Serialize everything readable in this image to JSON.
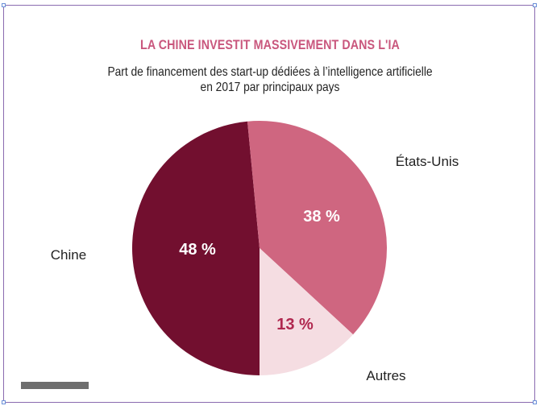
{
  "title": "LA CHINE INVESTIT MASSIVEMENT DANS L'IA",
  "subtitle_line1": "Part de financement des start-up dédiées à l’intelligence artificielle",
  "subtitle_line2": "en 2017 par principaux pays",
  "chart_data": {
    "type": "pie",
    "title": "LA CHINE INVESTIT MASSIVEMENT DANS L'IA",
    "subtitle": "Part de financement des start-up dédiées à l’intelligence artificielle en 2017 par principaux pays",
    "unit": "%",
    "slices": [
      {
        "label": "Chine",
        "value": 48,
        "value_label": "48 %",
        "color": "#720f2f",
        "value_color": "#ffffff"
      },
      {
        "label": "États-Unis",
        "value": 38,
        "value_label": "38 %",
        "color": "#cf6680",
        "value_color": "#ffffff"
      },
      {
        "label": "Autres",
        "value": 13,
        "value_label": "13 %",
        "color": "#f5dde2",
        "value_color": "#b0284f"
      }
    ]
  },
  "colors": {
    "title": "#c9577d",
    "frame": "#8a6bb0"
  }
}
